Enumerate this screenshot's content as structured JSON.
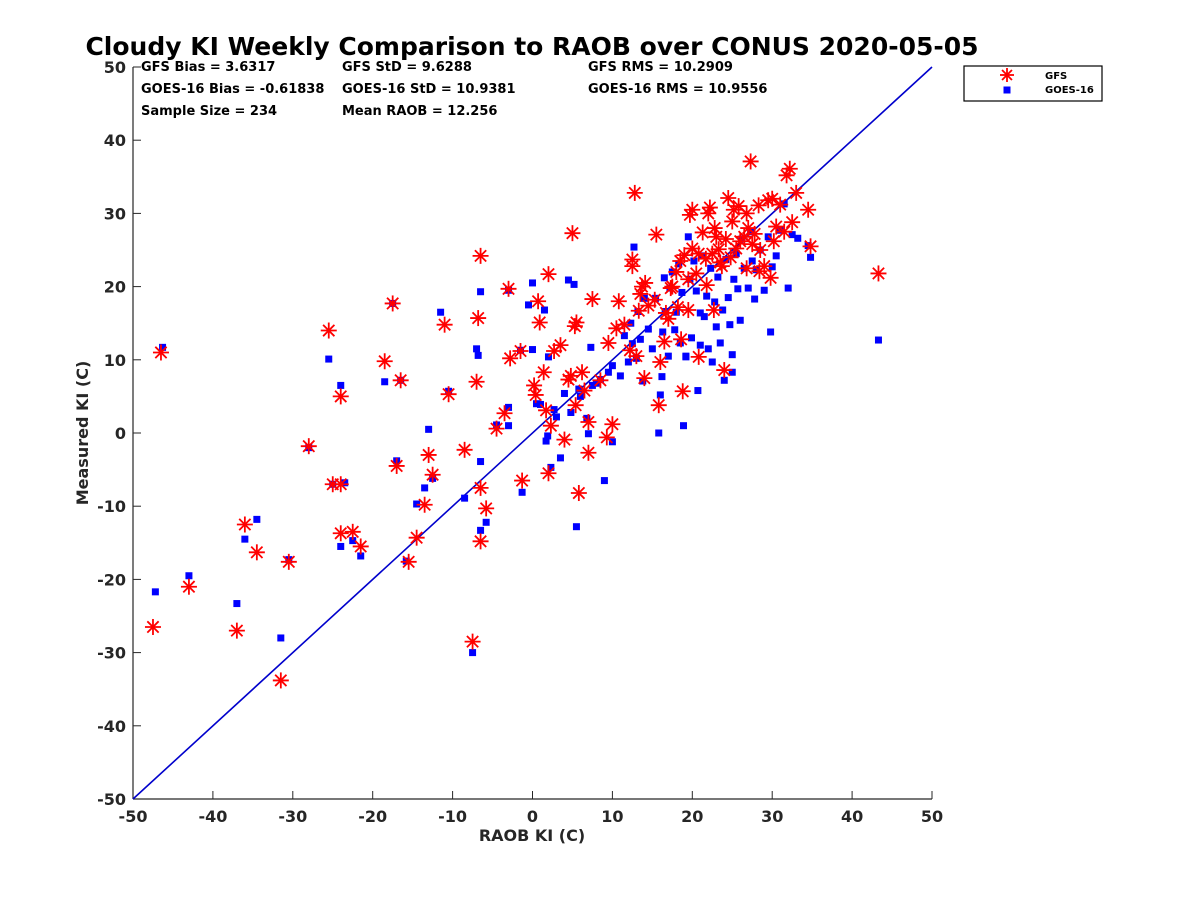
{
  "chart_data": {
    "type": "scatter",
    "title": "Cloudy KI Weekly Comparison to RAOB over CONUS 2020-05-05",
    "xlabel": "RAOB KI (C)",
    "ylabel": "Measured KI (C)",
    "xlim": [
      -50,
      50
    ],
    "ylim": [
      -50,
      50
    ],
    "xticks": [
      -50,
      -40,
      -30,
      -20,
      -10,
      0,
      10,
      20,
      30,
      40,
      50
    ],
    "yticks": [
      -50,
      -40,
      -30,
      -20,
      -10,
      0,
      10,
      20,
      30,
      40,
      50
    ],
    "grid": false,
    "legend_position": "top-right outside",
    "stats": [
      "GFS Bias = 3.6317",
      "GFS StD = 9.6288",
      "GFS RMS = 10.2909",
      "GOES-16 Bias = -0.61838",
      "GOES-16 StD = 10.9381",
      "GOES-16 RMS = 10.9556",
      "Sample Size = 234",
      "Mean RAOB = 12.256"
    ],
    "reference_line": {
      "from": [
        -50,
        -50
      ],
      "to": [
        50,
        50
      ],
      "color": "#0000cc"
    },
    "series": [
      {
        "name": "GFS",
        "marker": "asterisk",
        "color": "#ff0000",
        "points": [
          [
            -47.5,
            -26.5
          ],
          [
            -46.5,
            11
          ],
          [
            -43,
            -21
          ],
          [
            -37,
            -27
          ],
          [
            -36,
            -12.5
          ],
          [
            -34.5,
            -16.3
          ],
          [
            -31.5,
            -33.8
          ],
          [
            -30.5,
            -17.6
          ],
          [
            -28,
            -1.8
          ],
          [
            -25.5,
            14
          ],
          [
            -25,
            -7
          ],
          [
            -24,
            5
          ],
          [
            -24,
            -13.7
          ],
          [
            -24,
            -7
          ],
          [
            -22.5,
            -13.5
          ],
          [
            -21.5,
            -15.5
          ],
          [
            -18.5,
            9.8
          ],
          [
            -17.5,
            17.7
          ],
          [
            -17,
            -4.5
          ],
          [
            -16.5,
            7.2
          ],
          [
            -15.5,
            -17.6
          ],
          [
            -14.5,
            -14.3
          ],
          [
            -13.5,
            -9.8
          ],
          [
            -13,
            -3
          ],
          [
            -12.5,
            -5.7
          ],
          [
            -11,
            14.8
          ],
          [
            -10.5,
            5.3
          ],
          [
            -8.5,
            -2.3
          ],
          [
            -7.5,
            -28.5
          ],
          [
            -7,
            7
          ],
          [
            -6.8,
            15.7
          ],
          [
            -6.5,
            24.2
          ],
          [
            -6.5,
            -7.5
          ],
          [
            -6.5,
            -14.8
          ],
          [
            -5.8,
            -10.3
          ],
          [
            -4.5,
            0.6
          ],
          [
            -3.5,
            2.7
          ],
          [
            -3,
            19.7
          ],
          [
            -2.8,
            10.2
          ],
          [
            -1.5,
            11.2
          ],
          [
            -1.3,
            -6.5
          ],
          [
            0.2,
            6.5
          ],
          [
            0.4,
            5.2
          ],
          [
            0.7,
            18
          ],
          [
            0.9,
            15.1
          ],
          [
            1.4,
            8.3
          ],
          [
            1.7,
            3.1
          ],
          [
            2,
            21.7
          ],
          [
            2,
            -5.5
          ],
          [
            2.3,
            1
          ],
          [
            2.7,
            11.2
          ],
          [
            3.5,
            12
          ],
          [
            4,
            -0.9
          ],
          [
            4.5,
            7.3
          ],
          [
            4.8,
            7.8
          ],
          [
            5,
            27.3
          ],
          [
            5.4,
            3.8
          ],
          [
            5.3,
            14.6
          ],
          [
            5.5,
            15.1
          ],
          [
            5.8,
            -8.2
          ],
          [
            6.2,
            8.3
          ],
          [
            6.5,
            5.8
          ],
          [
            7,
            1.5
          ],
          [
            7,
            -2.7
          ],
          [
            7.5,
            18.3
          ],
          [
            8.5,
            7.2
          ],
          [
            9.5,
            12.3
          ],
          [
            9.3,
            -0.6
          ],
          [
            10,
            1.2
          ],
          [
            10.5,
            14.3
          ],
          [
            10.8,
            18
          ],
          [
            11.5,
            14.8
          ],
          [
            12.5,
            22.8
          ],
          [
            12.5,
            23.7
          ],
          [
            12.8,
            32.8
          ],
          [
            13,
            10.5
          ],
          [
            13.3,
            16.7
          ],
          [
            13.5,
            19
          ],
          [
            13.7,
            20
          ],
          [
            14,
            7.5
          ],
          [
            14.5,
            17.4
          ],
          [
            15.5,
            27.1
          ],
          [
            15.8,
            3.8
          ],
          [
            16,
            9.7
          ],
          [
            16.5,
            12.5
          ],
          [
            17,
            15.6
          ],
          [
            17.3,
            19.8
          ],
          [
            17.5,
            20
          ],
          [
            18,
            22
          ],
          [
            18.5,
            23.5
          ],
          [
            18.8,
            5.7
          ],
          [
            19,
            24.3
          ],
          [
            19.5,
            21
          ],
          [
            19.7,
            29.8
          ],
          [
            20,
            25.2
          ],
          [
            20,
            30.5
          ],
          [
            20.5,
            21.8
          ],
          [
            20.8,
            24.5
          ],
          [
            21.3,
            27.4
          ],
          [
            21.7,
            23.8
          ],
          [
            22,
            30
          ],
          [
            22.2,
            30.8
          ],
          [
            22.5,
            24.5
          ],
          [
            22.8,
            28
          ],
          [
            23,
            26.8
          ],
          [
            23.3,
            25.1
          ],
          [
            23.7,
            22.8
          ],
          [
            24,
            8.6
          ],
          [
            24.2,
            26.5
          ],
          [
            24.5,
            32.1
          ],
          [
            24.8,
            24
          ],
          [
            25,
            28.9
          ],
          [
            25.2,
            30.5
          ],
          [
            25.5,
            25.2
          ],
          [
            25.8,
            31
          ],
          [
            26,
            26.2
          ],
          [
            26.5,
            26.8
          ],
          [
            26.8,
            30
          ],
          [
            27,
            28
          ],
          [
            27.3,
            37.1
          ],
          [
            27.5,
            25.8
          ],
          [
            27.8,
            27.2
          ],
          [
            28.3,
            31.1
          ],
          [
            28.5,
            25
          ],
          [
            29,
            22.8
          ],
          [
            29.5,
            31.8
          ],
          [
            29.8,
            21.2
          ],
          [
            30,
            32
          ],
          [
            30.2,
            26.2
          ],
          [
            30.5,
            28.2
          ],
          [
            31,
            31.2
          ],
          [
            31.5,
            27.5
          ],
          [
            31.8,
            35.2
          ],
          [
            32.2,
            36.1
          ],
          [
            32.5,
            28.8
          ],
          [
            33,
            32.8
          ],
          [
            34.5,
            30.5
          ],
          [
            34.8,
            25.5
          ],
          [
            43.3,
            21.8
          ],
          [
            16.7,
            16.4
          ],
          [
            19.5,
            16.8
          ],
          [
            21.8,
            20.2
          ],
          [
            18.2,
            17.2
          ],
          [
            23.5,
            23.3
          ],
          [
            15.3,
            18.2
          ],
          [
            14.1,
            20.5
          ],
          [
            12.2,
            11.3
          ],
          [
            20.8,
            10.4
          ],
          [
            18.6,
            12.8
          ],
          [
            26.8,
            22.5
          ],
          [
            22.7,
            16.8
          ],
          [
            28.4,
            22.1
          ]
        ]
      },
      {
        "name": "GOES-16",
        "marker": "square",
        "color": "#0000ff",
        "points": [
          [
            -47.2,
            -21.7
          ],
          [
            -46.3,
            11.7
          ],
          [
            -43,
            -19.5
          ],
          [
            -37,
            -23.3
          ],
          [
            -36,
            -14.5
          ],
          [
            -34.5,
            -11.8
          ],
          [
            -31.5,
            -28
          ],
          [
            -30.5,
            -17.3
          ],
          [
            -28,
            -2
          ],
          [
            -25.5,
            10.1
          ],
          [
            -25,
            -7
          ],
          [
            -24,
            6.5
          ],
          [
            -24,
            -15.5
          ],
          [
            -23.5,
            -6.8
          ],
          [
            -22.5,
            -14.7
          ],
          [
            -21.5,
            -16.8
          ],
          [
            -18.5,
            7
          ],
          [
            -17.5,
            17.7
          ],
          [
            -17,
            -3.8
          ],
          [
            -16.5,
            7.2
          ],
          [
            -15.8,
            -17.5
          ],
          [
            -14.5,
            -9.7
          ],
          [
            -13.5,
            -7.5
          ],
          [
            -13,
            0.5
          ],
          [
            -12.5,
            -6.2
          ],
          [
            -11.5,
            16.5
          ],
          [
            -10.5,
            5.7
          ],
          [
            -8.5,
            -8.9
          ],
          [
            -7.5,
            -30
          ],
          [
            -7,
            11.5
          ],
          [
            -6.8,
            10.6
          ],
          [
            -6.5,
            19.3
          ],
          [
            -6.5,
            -3.9
          ],
          [
            -6.5,
            -13.3
          ],
          [
            -5.8,
            -12.2
          ],
          [
            -4.5,
            1.1
          ],
          [
            -3,
            3.5
          ],
          [
            -3,
            19.5
          ],
          [
            -3,
            1
          ],
          [
            -1.5,
            11.3
          ],
          [
            -1.3,
            -8.1
          ],
          [
            -0.5,
            17.5
          ],
          [
            0,
            20.5
          ],
          [
            0,
            11.4
          ],
          [
            0.5,
            4
          ],
          [
            1,
            3.9
          ],
          [
            1.5,
            16.8
          ],
          [
            1.7,
            -1.1
          ],
          [
            1.9,
            -0.4
          ],
          [
            2,
            10.4
          ],
          [
            2.3,
            -4.7
          ],
          [
            2.7,
            3.2
          ],
          [
            3,
            2.2
          ],
          [
            3.5,
            -3.4
          ],
          [
            4,
            5.4
          ],
          [
            4.5,
            20.9
          ],
          [
            4.8,
            2.8
          ],
          [
            5.2,
            20.3
          ],
          [
            5.5,
            -12.8
          ],
          [
            5.8,
            6
          ],
          [
            6,
            5
          ],
          [
            6.8,
            2
          ],
          [
            7,
            -0.1
          ],
          [
            7.3,
            11.7
          ],
          [
            7.5,
            6.5
          ],
          [
            8,
            6.8
          ],
          [
            8.5,
            7.3
          ],
          [
            9,
            -6.5
          ],
          [
            9.5,
            8.3
          ],
          [
            10,
            9.2
          ],
          [
            10,
            -1.2
          ],
          [
            11,
            7.8
          ],
          [
            11.5,
            13.3
          ],
          [
            12,
            9.7
          ],
          [
            12.3,
            15
          ],
          [
            12.5,
            12.2
          ],
          [
            12.7,
            25.4
          ],
          [
            13,
            10.2
          ],
          [
            13.2,
            16.6
          ],
          [
            13.5,
            12.8
          ],
          [
            13.8,
            7.1
          ],
          [
            14,
            18.4
          ],
          [
            14.5,
            14.2
          ],
          [
            15,
            11.5
          ],
          [
            15.4,
            18.4
          ],
          [
            15.8,
            0
          ],
          [
            16,
            5.2
          ],
          [
            16.2,
            7.7
          ],
          [
            16.3,
            13.8
          ],
          [
            16.5,
            21.2
          ],
          [
            17,
            10.5
          ],
          [
            17.2,
            19.8
          ],
          [
            17.5,
            22
          ],
          [
            17.8,
            14.1
          ],
          [
            18,
            16.5
          ],
          [
            18.3,
            23.1
          ],
          [
            18.5,
            12.3
          ],
          [
            18.7,
            19.2
          ],
          [
            18.9,
            1
          ],
          [
            19.2,
            10.4
          ],
          [
            19.5,
            26.8
          ],
          [
            19.7,
            21
          ],
          [
            19.9,
            13
          ],
          [
            20.2,
            23.5
          ],
          [
            20.5,
            19.4
          ],
          [
            20.7,
            5.8
          ],
          [
            21,
            12
          ],
          [
            21.2,
            24.2
          ],
          [
            21.5,
            15.9
          ],
          [
            21.8,
            18.7
          ],
          [
            22,
            11.5
          ],
          [
            22.3,
            22.5
          ],
          [
            22.5,
            9.7
          ],
          [
            22.8,
            17.9
          ],
          [
            23,
            14.5
          ],
          [
            23.2,
            21.3
          ],
          [
            23.5,
            12.3
          ],
          [
            23.8,
            16.8
          ],
          [
            24,
            7.2
          ],
          [
            24.2,
            23.7
          ],
          [
            24.5,
            18.5
          ],
          [
            24.7,
            14.8
          ],
          [
            25,
            8.3
          ],
          [
            25.2,
            21
          ],
          [
            25.5,
            24.5
          ],
          [
            25.7,
            19.7
          ],
          [
            26,
            15.4
          ],
          [
            26.2,
            26.5
          ],
          [
            26.5,
            22.5
          ],
          [
            27,
            19.8
          ],
          [
            27.3,
            27.5
          ],
          [
            27.5,
            23.5
          ],
          [
            27.8,
            18.3
          ],
          [
            28,
            22.3
          ],
          [
            28.5,
            25
          ],
          [
            29,
            19.5
          ],
          [
            29.5,
            26.8
          ],
          [
            29.8,
            13.8
          ],
          [
            30,
            22.7
          ],
          [
            30.5,
            24.2
          ],
          [
            31,
            27.7
          ],
          [
            31.5,
            31.3
          ],
          [
            32,
            19.8
          ],
          [
            32.5,
            27.1
          ],
          [
            33.2,
            26.6
          ],
          [
            34.5,
            25.6
          ],
          [
            34.8,
            24
          ],
          [
            43.3,
            12.7
          ],
          [
            19.2,
            10.5
          ],
          [
            21,
            16.4
          ],
          [
            25,
            10.7
          ],
          [
            16.6,
            16.6
          ]
        ]
      }
    ]
  }
}
